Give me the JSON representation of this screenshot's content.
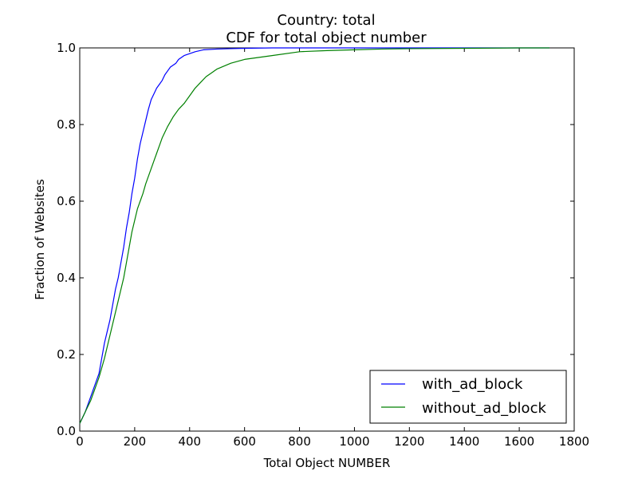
{
  "chart_data": {
    "type": "line",
    "title": "Country: total",
    "subtitle": "CDF for total object number",
    "xlabel": "Total Object NUMBER",
    "ylabel": "Fraction of Websites",
    "xlim": [
      0,
      1800
    ],
    "ylim": [
      0,
      1.0
    ],
    "x_ticks": [
      0,
      200,
      400,
      600,
      800,
      1000,
      1200,
      1400,
      1600,
      1800
    ],
    "y_ticks": [
      "0.0",
      "0.2",
      "0.4",
      "0.6",
      "0.8",
      "1.0"
    ],
    "grid": false,
    "legend_position": "lower-right",
    "series": [
      {
        "name": "with_ad_block",
        "color": "#0000ff",
        "x": [
          0,
          10,
          20,
          30,
          40,
          50,
          60,
          70,
          80,
          90,
          100,
          110,
          120,
          130,
          140,
          150,
          160,
          170,
          180,
          190,
          200,
          210,
          220,
          230,
          240,
          250,
          260,
          270,
          280,
          290,
          300,
          310,
          320,
          330,
          340,
          350,
          360,
          380,
          400,
          420,
          450,
          500,
          550,
          600,
          700,
          800,
          1000,
          1200,
          1400,
          1600,
          1710
        ],
        "y": [
          0.02,
          0.035,
          0.05,
          0.07,
          0.09,
          0.11,
          0.13,
          0.15,
          0.19,
          0.23,
          0.26,
          0.29,
          0.33,
          0.37,
          0.4,
          0.44,
          0.48,
          0.53,
          0.57,
          0.62,
          0.66,
          0.71,
          0.75,
          0.78,
          0.81,
          0.84,
          0.865,
          0.88,
          0.895,
          0.905,
          0.915,
          0.93,
          0.94,
          0.95,
          0.955,
          0.96,
          0.97,
          0.98,
          0.985,
          0.99,
          0.995,
          0.997,
          0.998,
          0.999,
          1.0,
          1.0,
          1.0,
          1.0,
          1.0,
          1.0,
          1.0
        ]
      },
      {
        "name": "without_ad_block",
        "color": "#008000",
        "x": [
          0,
          10,
          20,
          30,
          40,
          50,
          60,
          70,
          80,
          90,
          100,
          110,
          120,
          130,
          140,
          150,
          160,
          170,
          180,
          190,
          200,
          210,
          220,
          230,
          240,
          250,
          260,
          270,
          280,
          290,
          300,
          320,
          340,
          360,
          380,
          400,
          420,
          440,
          460,
          480,
          500,
          550,
          600,
          650,
          700,
          800,
          900,
          1000,
          1100,
          1200,
          1400,
          1600,
          1710
        ],
        "y": [
          0.02,
          0.035,
          0.05,
          0.065,
          0.08,
          0.1,
          0.12,
          0.14,
          0.165,
          0.19,
          0.22,
          0.25,
          0.28,
          0.31,
          0.34,
          0.37,
          0.4,
          0.44,
          0.48,
          0.52,
          0.55,
          0.58,
          0.6,
          0.62,
          0.645,
          0.665,
          0.685,
          0.705,
          0.725,
          0.745,
          0.765,
          0.795,
          0.82,
          0.84,
          0.855,
          0.875,
          0.895,
          0.91,
          0.925,
          0.935,
          0.945,
          0.96,
          0.97,
          0.975,
          0.98,
          0.99,
          0.993,
          0.995,
          0.997,
          0.998,
          0.999,
          1.0,
          1.0
        ]
      }
    ]
  }
}
